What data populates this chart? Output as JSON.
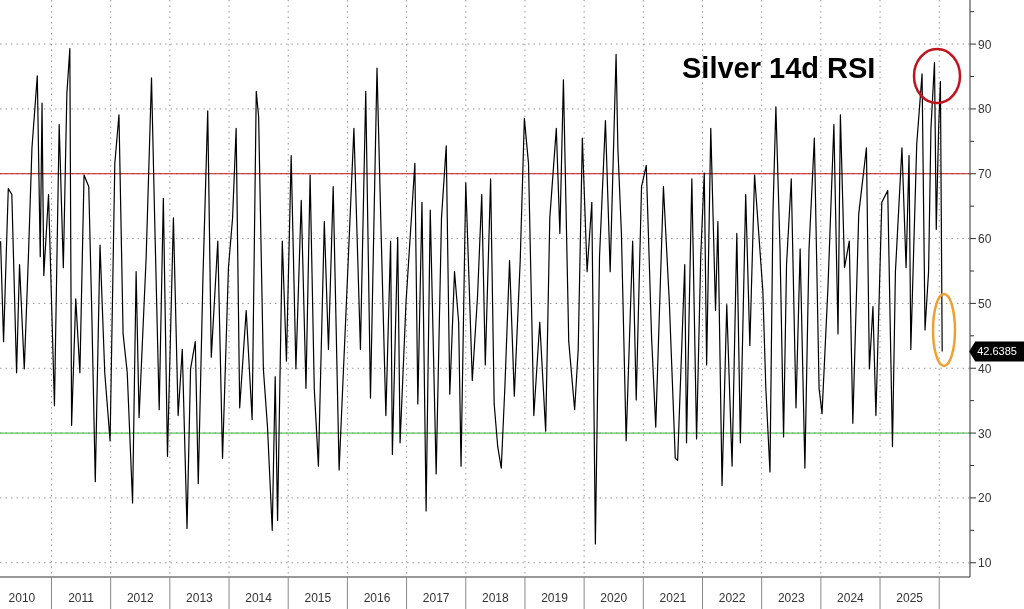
{
  "chart_data": {
    "type": "line",
    "title": "Silver 14d RSI",
    "x": [
      2010.14,
      2010.19,
      2010.27,
      2010.33,
      2010.41,
      2010.46,
      2010.54,
      2010.61,
      2010.67,
      2010.76,
      2010.81,
      2010.84,
      2010.87,
      2010.95,
      2011.05,
      2011.13,
      2011.2,
      2011.26,
      2011.31,
      2011.34,
      2011.41,
      2011.48,
      2011.55,
      2011.63,
      2011.68,
      2011.74,
      2011.82,
      2011.9,
      2011.99,
      2012.07,
      2012.14,
      2012.21,
      2012.28,
      2012.37,
      2012.43,
      2012.48,
      2012.6,
      2012.69,
      2012.74,
      2012.82,
      2012.89,
      2012.96,
      2013.06,
      2013.14,
      2013.21,
      2013.29,
      2013.35,
      2013.43,
      2013.48,
      2013.56,
      2013.64,
      2013.7,
      2013.81,
      2013.89,
      2013.99,
      2014.06,
      2014.12,
      2014.18,
      2014.29,
      2014.39,
      2014.46,
      2014.5,
      2014.58,
      2014.65,
      2014.73,
      2014.78,
      2014.82,
      2014.9,
      2014.97,
      2015.05,
      2015.13,
      2015.22,
      2015.3,
      2015.37,
      2015.44,
      2015.51,
      2015.61,
      2015.68,
      2015.76,
      2015.86,
      2016.0,
      2016.11,
      2016.22,
      2016.31,
      2016.39,
      2016.5,
      2016.57,
      2016.65,
      2016.73,
      2016.76,
      2016.85,
      2016.89,
      2016.99,
      2017.14,
      2017.19,
      2017.26,
      2017.33,
      2017.4,
      2017.5,
      2017.59,
      2017.67,
      2017.73,
      2017.81,
      2017.88,
      2017.92,
      2018.0,
      2018.05,
      2018.11,
      2018.2,
      2018.27,
      2018.33,
      2018.42,
      2018.48,
      2018.54,
      2018.6,
      2018.66,
      2018.74,
      2018.82,
      2018.92,
      2018.99,
      2019.06,
      2019.15,
      2019.25,
      2019.35,
      2019.42,
      2019.53,
      2019.59,
      2019.65,
      2019.74,
      2019.84,
      2019.9,
      2019.97,
      2020.05,
      2020.13,
      2020.19,
      2020.26,
      2020.36,
      2020.44,
      2020.54,
      2020.57,
      2020.63,
      2020.71,
      2020.82,
      2020.88,
      2020.97,
      2021.05,
      2021.14,
      2021.21,
      2021.34,
      2021.44,
      2021.54,
      2021.58,
      2021.7,
      2021.73,
      2021.82,
      2021.9,
      2021.97,
      2022.03,
      2022.07,
      2022.14,
      2022.22,
      2022.26,
      2022.33,
      2022.41,
      2022.5,
      2022.58,
      2022.64,
      2022.73,
      2022.8,
      2022.88,
      2023.02,
      2023.07,
      2023.14,
      2023.19,
      2023.24,
      2023.31,
      2023.37,
      2023.42,
      2023.5,
      2023.58,
      2023.65,
      2023.73,
      2023.8,
      2023.89,
      2023.97,
      2024.02,
      2024.12,
      2024.22,
      2024.29,
      2024.33,
      2024.4,
      2024.48,
      2024.54,
      2024.64,
      2024.77,
      2024.82,
      2024.88,
      2024.93,
      2025.03,
      2025.13,
      2025.21,
      2025.26,
      2025.37,
      2025.44,
      2025.49,
      2025.52,
      2025.62,
      2025.71,
      2025.76,
      2025.82,
      2025.86,
      2025.92,
      2025.95,
      2025.99,
      2026.02,
      2026.05
    ],
    "series": [
      {
        "color": "#000000",
        "values": [
          59.6,
          44.1,
          67.7,
          66.8,
          39.3,
          56.0,
          39.9,
          57.2,
          74.0,
          85.1,
          57.2,
          80.9,
          54.3,
          66.8,
          34.2,
          77.6,
          55.5,
          82.4,
          89.3,
          31.2,
          50.7,
          39.3,
          69.8,
          68.0,
          48.9,
          22.5,
          59.0,
          39.3,
          28.8,
          71.6,
          79.1,
          45.3,
          39.3,
          19.2,
          54.9,
          32.4,
          57.2,
          84.8,
          64.4,
          33.6,
          66.2,
          26.4,
          63.2,
          32.7,
          42.9,
          15.3,
          39.9,
          44.1,
          22.2,
          54.3,
          79.7,
          41.7,
          59.6,
          26.1,
          55.5,
          63.2,
          77.0,
          33.9,
          48.9,
          32.1,
          82.7,
          78.8,
          39.9,
          30.9,
          15.0,
          38.7,
          16.5,
          59.6,
          41.1,
          72.8,
          39.9,
          65.9,
          36.9,
          69.8,
          36.9,
          24.9,
          62.6,
          42.9,
          68.0,
          24.3,
          53.7,
          77.0,
          42.9,
          82.7,
          35.4,
          86.3,
          60.8,
          32.7,
          59.6,
          26.7,
          60.2,
          28.5,
          50.1,
          71.6,
          34.5,
          65.6,
          18.0,
          64.4,
          23.7,
          63.2,
          74.3,
          36.0,
          54.9,
          47.1,
          24.9,
          68.6,
          54.9,
          38.1,
          51.3,
          66.8,
          40.5,
          69.2,
          34.5,
          27.9,
          24.6,
          36.9,
          56.6,
          35.7,
          56.6,
          78.5,
          71.6,
          32.7,
          47.1,
          30.3,
          63.2,
          77.0,
          60.8,
          84.5,
          44.1,
          33.6,
          42.9,
          75.5,
          54.9,
          65.6,
          12.9,
          57.2,
          78.2,
          54.9,
          88.4,
          74.0,
          60.8,
          28.8,
          59.6,
          35.1,
          68.0,
          71.3,
          44.7,
          30.9,
          68.0,
          50.1,
          26.1,
          25.8,
          56.0,
          28.5,
          69.2,
          29.1,
          57.2,
          70.1,
          40.5,
          77.0,
          48.9,
          62.6,
          21.9,
          49.8,
          24.9,
          60.8,
          28.5,
          66.8,
          43.5,
          69.8,
          51.9,
          36.9,
          24.0,
          63.8,
          80.3,
          58.4,
          29.4,
          56.0,
          69.2,
          33.9,
          58.4,
          24.6,
          58.4,
          75.5,
          36.9,
          33.0,
          52.5,
          77.6,
          45.3,
          79.1,
          55.5,
          59.6,
          31.5,
          63.8,
          74.0,
          39.9,
          49.5,
          32.7,
          65.6,
          67.4,
          27.9,
          54.9,
          74.0,
          55.5,
          72.8,
          42.9,
          74.6,
          85.4,
          45.9,
          54.9,
          77.0,
          87.2,
          61.4,
          77.0,
          84.2,
          42.6
        ]
      }
    ],
    "xlim": [
      2010.13,
      2026.52
    ],
    "xticks": [
      {
        "value": 2010.5,
        "label": "2010"
      },
      {
        "value": 2011,
        "label": null
      },
      {
        "value": 2011.5,
        "label": "2011"
      },
      {
        "value": 2012,
        "label": null
      },
      {
        "value": 2012.5,
        "label": "2012"
      },
      {
        "value": 2013,
        "label": null
      },
      {
        "value": 2013.5,
        "label": "2013"
      },
      {
        "value": 2014,
        "label": null
      },
      {
        "value": 2014.5,
        "label": "2014"
      },
      {
        "value": 2015,
        "label": null
      },
      {
        "value": 2015.5,
        "label": "2015"
      },
      {
        "value": 2016,
        "label": null
      },
      {
        "value": 2016.5,
        "label": "2016"
      },
      {
        "value": 2017,
        "label": null
      },
      {
        "value": 2017.5,
        "label": "2017"
      },
      {
        "value": 2018,
        "label": null
      },
      {
        "value": 2018.5,
        "label": "2018"
      },
      {
        "value": 2019,
        "label": null
      },
      {
        "value": 2019.5,
        "label": "2019"
      },
      {
        "value": 2020,
        "label": null
      },
      {
        "value": 2020.5,
        "label": "2020"
      },
      {
        "value": 2021,
        "label": null
      },
      {
        "value": 2021.5,
        "label": "2021"
      },
      {
        "value": 2022,
        "label": null
      },
      {
        "value": 2022.5,
        "label": "2022"
      },
      {
        "value": 2023,
        "label": null
      },
      {
        "value": 2023.5,
        "label": "2023"
      },
      {
        "value": 2024,
        "label": null
      },
      {
        "value": 2024.5,
        "label": "2024"
      },
      {
        "value": 2025,
        "label": null
      },
      {
        "value": 2025.5,
        "label": "2025"
      },
      {
        "value": 2026,
        "label": null
      }
    ],
    "ylim": [
      7.8,
      96.8
    ],
    "yticks": [
      10,
      {
        "value": 15,
        "label": null
      },
      20,
      {
        "value": 25,
        "label": null
      },
      30,
      {
        "value": 35,
        "label": null
      },
      40,
      {
        "value": 45,
        "label": null
      },
      50,
      {
        "value": 55,
        "label": null
      },
      60,
      {
        "value": 65,
        "label": null
      },
      70,
      {
        "value": 75,
        "label": null
      },
      80,
      {
        "value": 85,
        "label": null
      },
      90,
      {
        "value": 95,
        "label": null
      }
    ],
    "grid": true,
    "ref_lines": [
      {
        "axis": "y",
        "value": 70,
        "color": "#c0141e"
      },
      {
        "axis": "y",
        "value": 30,
        "color": "#3cb43c"
      }
    ],
    "annotations": [
      "42.6385"
    ]
  }
}
